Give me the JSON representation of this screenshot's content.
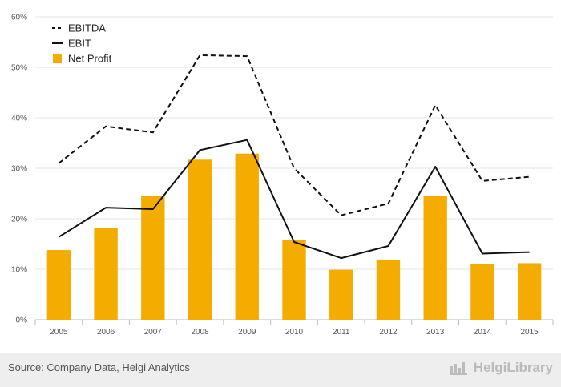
{
  "chart_data": {
    "type": "bar",
    "title": "",
    "xlabel": "",
    "ylabel": "",
    "categories": [
      "2005",
      "2006",
      "2007",
      "2008",
      "2009",
      "2010",
      "2011",
      "2012",
      "2013",
      "2014",
      "2015"
    ],
    "ylim": [
      0,
      60
    ],
    "yticks": [
      "0%",
      "10%",
      "20%",
      "30%",
      "40%",
      "50%",
      "60%"
    ],
    "ytick_values": [
      0,
      10,
      20,
      30,
      40,
      50,
      60
    ],
    "grid": true,
    "legend_position": "top-left",
    "series": [
      {
        "name": "EBITDA",
        "kind": "line",
        "style": "dashed",
        "color": "#111111",
        "values": [
          31.0,
          38.3,
          37.1,
          52.4,
          52.2,
          30.0,
          20.7,
          23.0,
          42.5,
          27.5,
          28.3
        ]
      },
      {
        "name": "EBIT",
        "kind": "line",
        "style": "solid",
        "color": "#111111",
        "values": [
          16.4,
          22.2,
          21.9,
          33.6,
          35.6,
          15.4,
          12.2,
          14.6,
          30.3,
          13.1,
          13.4
        ]
      },
      {
        "name": "Net Profit",
        "kind": "bar",
        "color": "#f5ac00",
        "values": [
          13.8,
          18.2,
          24.6,
          31.7,
          32.9,
          15.8,
          9.9,
          11.9,
          24.6,
          11.1,
          11.2
        ]
      }
    ]
  },
  "footer": {
    "source": "Source: Company Data, Helgi Analytics",
    "brand": "HelgiLibrary"
  }
}
